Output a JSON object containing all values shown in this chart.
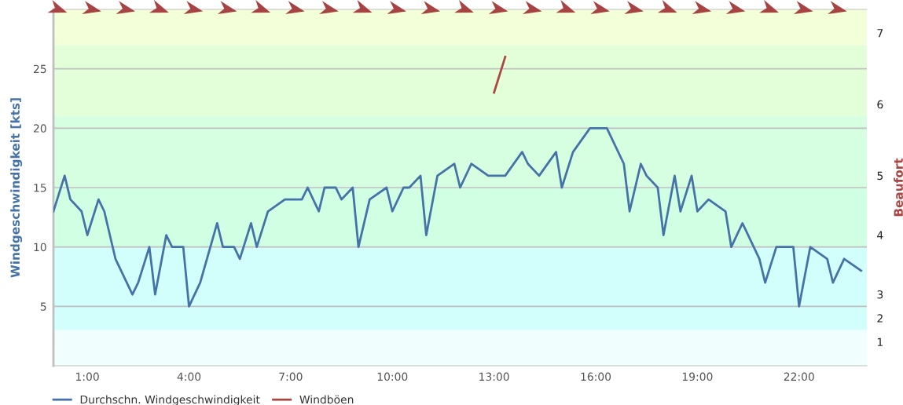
{
  "chart_data": {
    "type": "line",
    "ylabel": "Windgeschwindigkeit [kts]",
    "y2label": "Beaufort",
    "series": [
      {
        "name": "Durchschn. Windgeschwindigkeit",
        "color": "#4572a7",
        "x": [
          0,
          0.33,
          0.5,
          0.83,
          1,
          1.33,
          1.5,
          1.83,
          2.33,
          2.5,
          2.83,
          3,
          3.33,
          3.5,
          3.83,
          4,
          4.33,
          4.83,
          5,
          5.33,
          5.5,
          5.83,
          6,
          6.33,
          6.83,
          7.33,
          7.5,
          7.83,
          8,
          8.33,
          8.5,
          8.83,
          9,
          9.33,
          9.83,
          10,
          10.33,
          10.5,
          10.83,
          11,
          11.33,
          11.83,
          12,
          12.33,
          12.83,
          13.33,
          13.83,
          14,
          14.33,
          14.83,
          15,
          15.33,
          15.83,
          16.33,
          16.83,
          17,
          17.33,
          17.5,
          17.83,
          18,
          18.33,
          18.5,
          18.83,
          19,
          19.33,
          19.83,
          20,
          20.33,
          20.83,
          21,
          21.33,
          21.83,
          22,
          22.33,
          22.83,
          23,
          23.33,
          23.83
        ],
        "values": [
          13,
          16,
          14,
          13,
          11,
          14,
          13,
          9,
          6,
          7,
          10,
          6,
          11,
          10,
          10,
          5,
          7,
          12,
          10,
          10,
          9,
          12,
          10,
          13,
          14,
          14,
          15,
          13,
          15,
          15,
          14,
          15,
          10,
          14,
          15,
          13,
          15,
          15,
          16,
          11,
          16,
          17,
          15,
          17,
          16,
          16,
          18,
          17,
          16,
          18,
          15,
          18,
          20,
          20,
          17,
          13,
          17,
          16,
          15,
          11,
          16,
          13,
          16,
          13,
          14,
          13,
          10,
          12,
          9,
          7,
          10,
          10,
          5,
          10,
          9,
          7,
          9,
          8
        ]
      },
      {
        "name": "Windböen",
        "color": "#aa4643",
        "x": [
          13,
          13.33
        ],
        "values": [
          23,
          26
        ]
      }
    ],
    "xlim": [
      0,
      24
    ],
    "xticks": [
      {
        "value": 1,
        "label": "1:00"
      },
      {
        "value": 4,
        "label": "4:00"
      },
      {
        "value": 7,
        "label": "7:00"
      },
      {
        "value": 10,
        "label": "10:00"
      },
      {
        "value": 13,
        "label": "13:00"
      },
      {
        "value": 16,
        "label": "16:00"
      },
      {
        "value": 19,
        "label": "19:00"
      },
      {
        "value": 22,
        "label": "22:00"
      }
    ],
    "ylim": [
      0,
      30
    ],
    "yticks": [
      5,
      10,
      15,
      20,
      25
    ],
    "bands": [
      {
        "axis": "y",
        "from": 0,
        "to": 1,
        "color": "#f0fffe"
      },
      {
        "axis": "y",
        "from": 1,
        "to": 3,
        "color": "#f0fffe",
        "label": "1"
      },
      {
        "axis": "y",
        "from": 3,
        "to": 5,
        "color": "#d2fffc",
        "label": "2"
      },
      {
        "axis": "y",
        "from": 5,
        "to": 10,
        "color": "#d2fffc",
        "label": "3"
      },
      {
        "axis": "y",
        "from": 10,
        "to": 15,
        "color": "#d0ffe4",
        "label": "4"
      },
      {
        "axis": "y",
        "from": 15,
        "to": 21,
        "color": "#d6ffe2",
        "label": "5"
      },
      {
        "axis": "y",
        "from": 21,
        "to": 27,
        "color": "#e2ffda",
        "label": "6"
      },
      {
        "axis": "y",
        "from": 27,
        "to": 30,
        "color": "#f2ffd8",
        "label": "7"
      }
    ],
    "grid": "y",
    "legend": "bottom",
    "marker": "none",
    "line_style": "solid"
  }
}
